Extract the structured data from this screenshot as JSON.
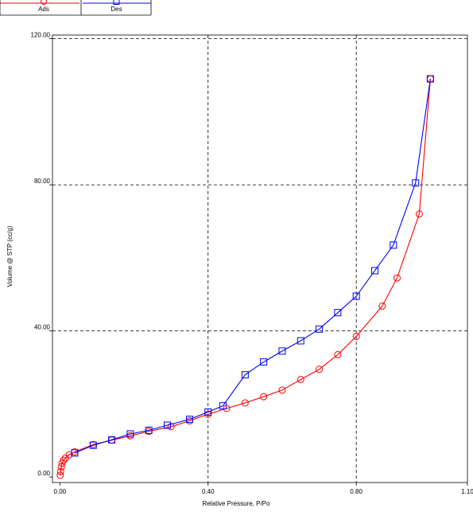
{
  "chart_data": {
    "type": "line",
    "xlabel": "Relative Pressure, P/Po",
    "ylabel": "Volume @ STP (cc/g)",
    "xlim": [
      -0.02,
      1.1
    ],
    "ylim": [
      -1.5,
      121
    ],
    "x_ticks": [
      {
        "value": 0.0,
        "label": "0.00"
      },
      {
        "value": 0.4,
        "label": "0.40"
      },
      {
        "value": 0.8,
        "label": "0.80"
      },
      {
        "value": 1.1,
        "label": "1.10"
      }
    ],
    "y_ticks": [
      {
        "value": 0.0,
        "label": "0.00"
      },
      {
        "value": 40.0,
        "label": "40.00"
      },
      {
        "value": 80.0,
        "label": "80.00"
      },
      {
        "value": 120.0,
        "label": "120.00"
      }
    ],
    "grid": true,
    "grid_style": "dashed",
    "legend_position": "top-left",
    "series": [
      {
        "name": "Ads",
        "color": "#ff0000",
        "marker": "circle",
        "x": [
          0.001,
          0.002,
          0.004,
          0.006,
          0.01,
          0.015,
          0.025,
          0.04,
          0.09,
          0.14,
          0.19,
          0.24,
          0.3,
          0.35,
          0.4,
          0.45,
          0.5,
          0.55,
          0.6,
          0.65,
          0.7,
          0.75,
          0.8,
          0.87,
          0.91,
          0.97,
          1.0
        ],
        "y": [
          0.5,
          1.5,
          2.8,
          3.8,
          4.6,
          5.2,
          6.1,
          6.9,
          8.9,
          10.1,
          11.3,
          12.5,
          13.8,
          15.4,
          17.2,
          18.8,
          20.3,
          22.0,
          23.8,
          26.7,
          29.5,
          33.5,
          38.5,
          46.8,
          54.5,
          72.0,
          109.0
        ]
      },
      {
        "name": "Des",
        "color": "#0000ff",
        "marker": "square",
        "x": [
          1.0,
          0.96,
          0.9,
          0.85,
          0.8,
          0.75,
          0.7,
          0.65,
          0.6,
          0.55,
          0.5,
          0.44,
          0.4,
          0.35,
          0.29,
          0.24,
          0.19,
          0.14,
          0.09,
          0.04
        ],
        "y": [
          109.0,
          80.5,
          63.5,
          56.5,
          49.5,
          45.0,
          40.5,
          37.3,
          34.5,
          31.5,
          28.0,
          19.5,
          17.8,
          15.8,
          14.2,
          12.8,
          11.8,
          10.2,
          8.7,
          6.6
        ]
      }
    ]
  }
}
